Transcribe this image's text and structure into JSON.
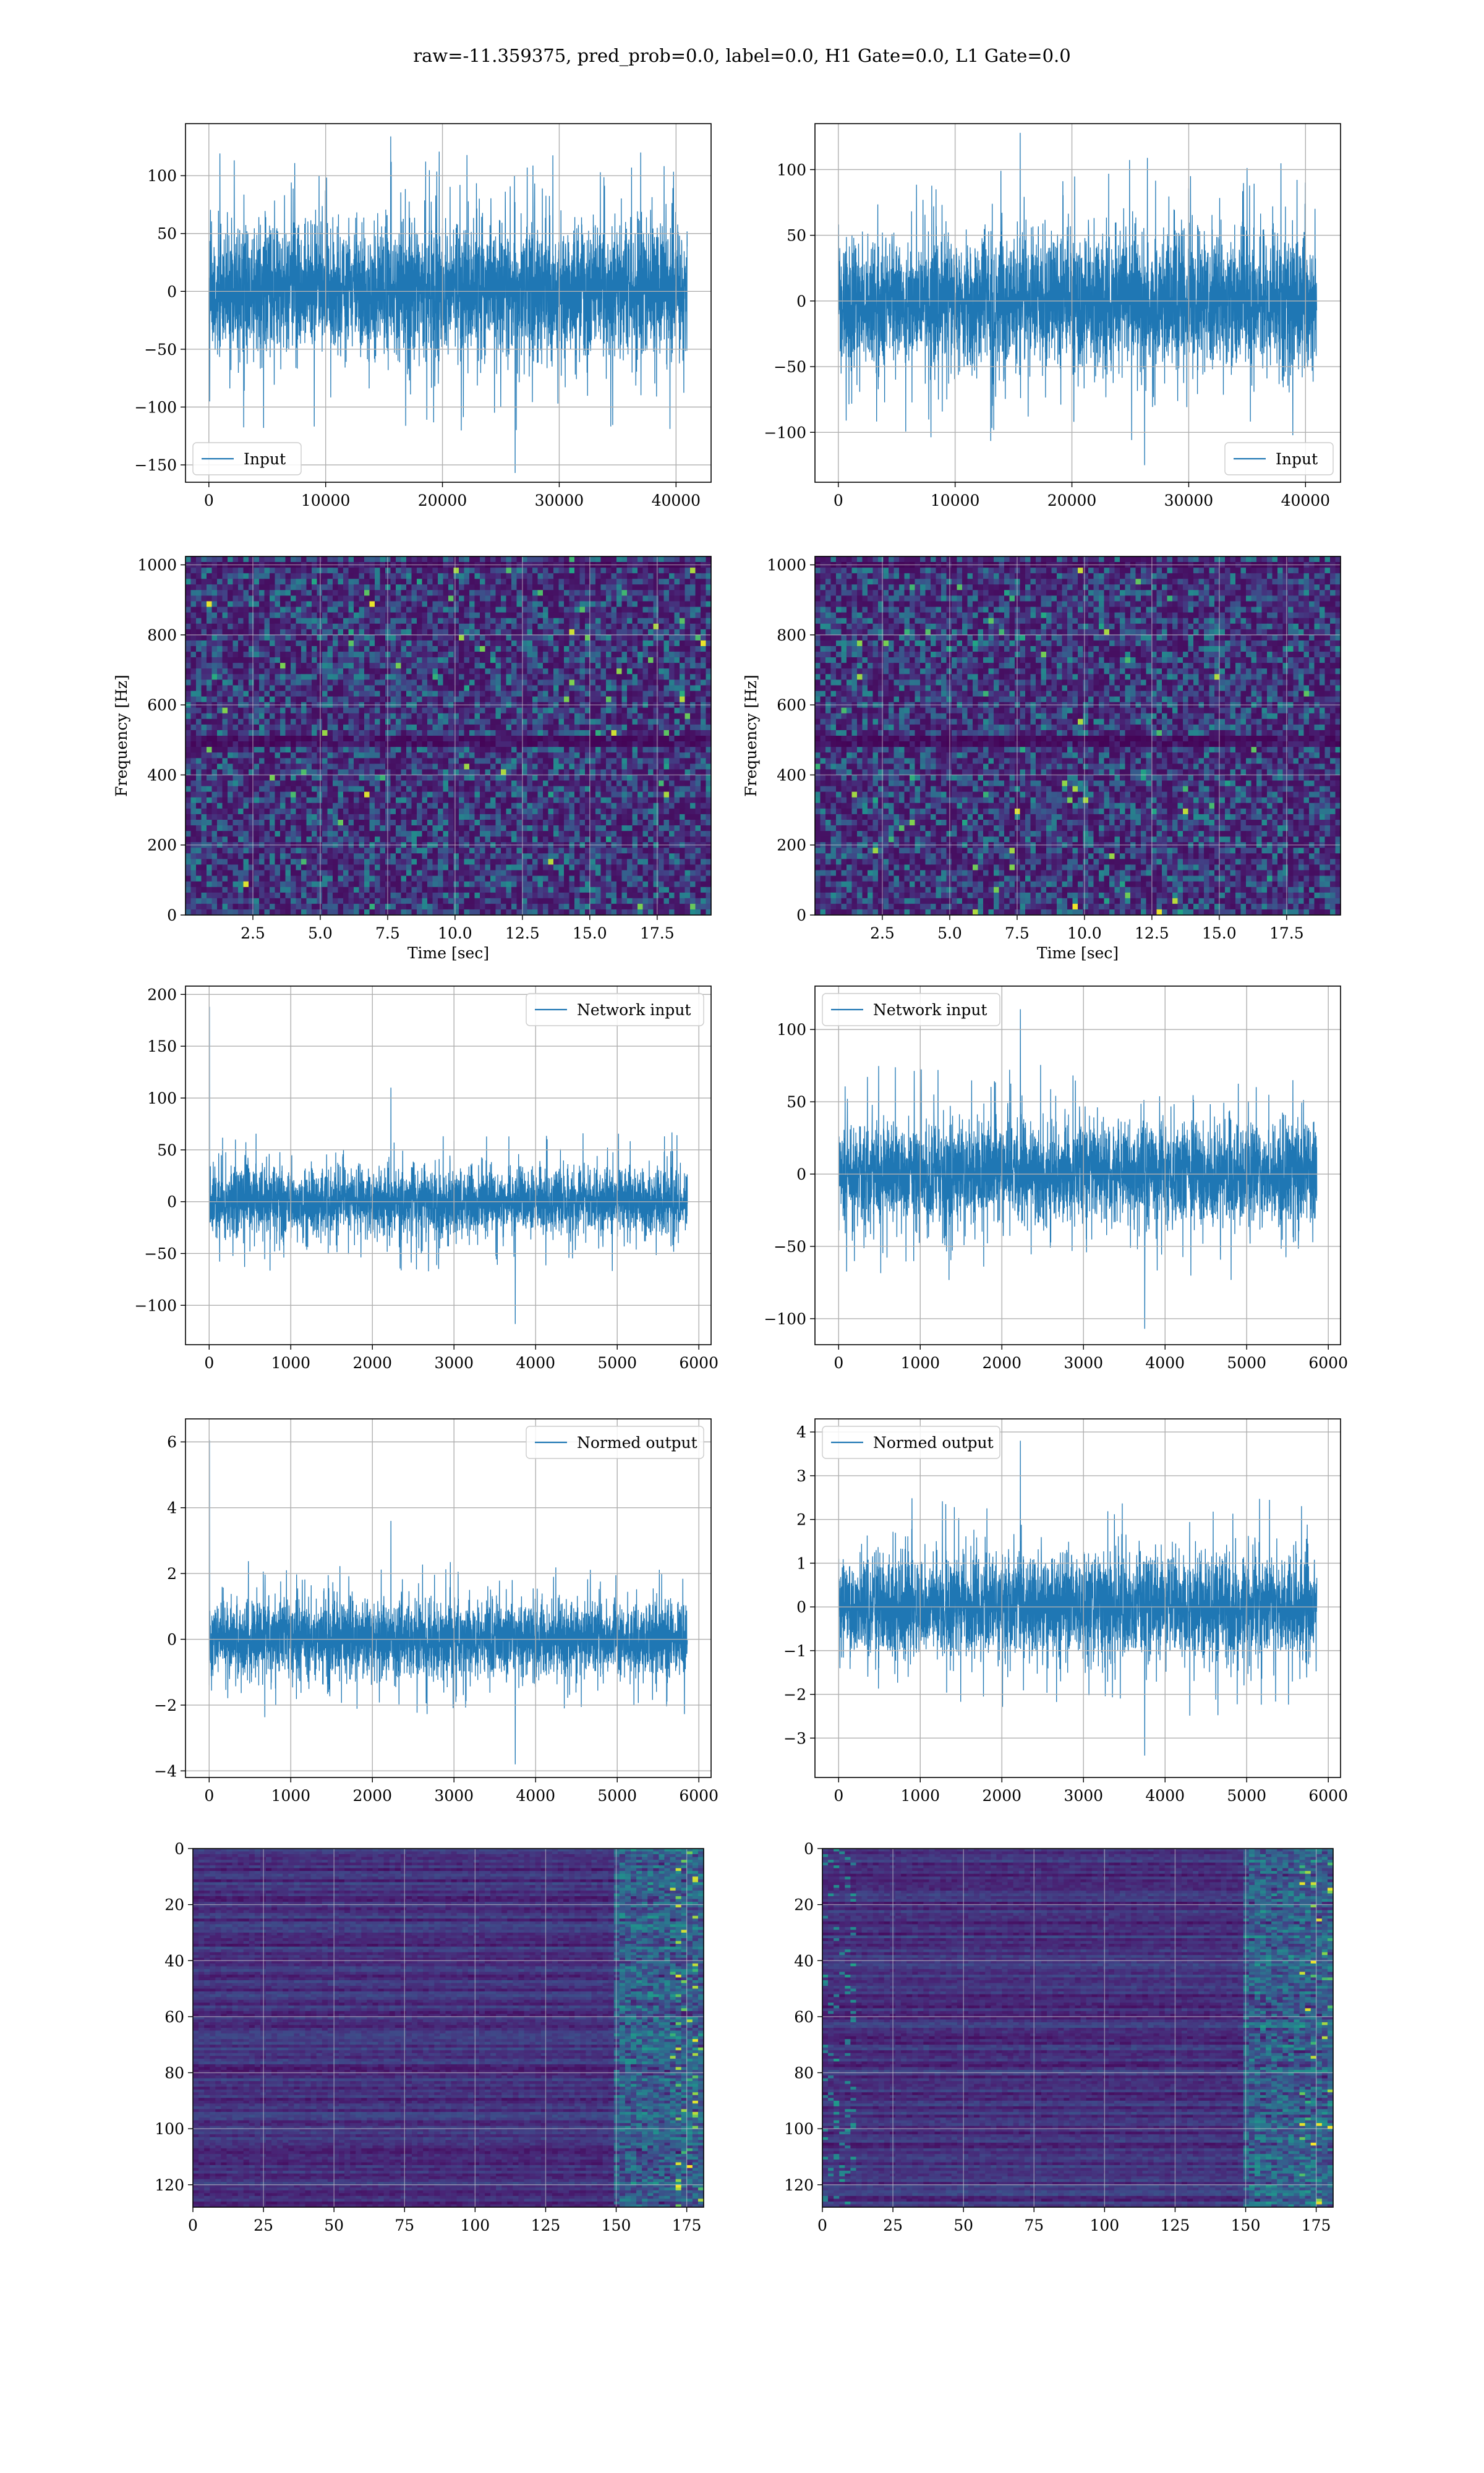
{
  "figure": {
    "suptitle": "raw=-11.359375, pred_prob=0.0, label=0.0, H1 Gate=0.0, L1 Gate=0.0",
    "line_color": "#1f77b4",
    "grid_color": "#b0b0b0",
    "colormap": "viridis"
  },
  "chart_data": [
    {
      "type": "line",
      "panel": "row1-left",
      "series": [
        {
          "name": "Input",
          "amplitude": 58,
          "spike_max": 134,
          "spike_min": -157,
          "n_samples": 40960
        }
      ],
      "xlim": [
        -2000,
        43000
      ],
      "ylim": [
        -165,
        145
      ],
      "xticks": [
        0,
        10000,
        20000,
        30000,
        40000
      ],
      "xticklabels": [
        "0",
        "10000",
        "20000",
        "30000",
        "40000"
      ],
      "yticks": [
        100,
        50,
        0,
        -50,
        -100,
        -150
      ],
      "yticklabels": [
        "100",
        "50",
        "0",
        "−50",
        "−100",
        "−150"
      ],
      "legend": "lower left",
      "grid": true
    },
    {
      "type": "line",
      "panel": "row1-right",
      "series": [
        {
          "name": "Input",
          "amplitude": 52,
          "spike_max": 128,
          "spike_min": -125,
          "n_samples": 40960
        }
      ],
      "xlim": [
        -2000,
        43000
      ],
      "ylim": [
        -138,
        135
      ],
      "xticks": [
        0,
        10000,
        20000,
        30000,
        40000
      ],
      "xticklabels": [
        "0",
        "10000",
        "20000",
        "30000",
        "40000"
      ],
      "yticks": [
        100,
        50,
        0,
        -50,
        -100
      ],
      "yticklabels": [
        "100",
        "50",
        "0",
        "−50",
        "−100"
      ],
      "legend": "lower right",
      "grid": true
    },
    {
      "type": "heatmap",
      "panel": "row2-left",
      "xlabel": "Time [sec]",
      "ylabel": "Frequency [Hz]",
      "xlim": [
        0,
        19.5
      ],
      "ylim": [
        0,
        1024
      ],
      "xticks": [
        2.5,
        5.0,
        7.5,
        10.0,
        12.5,
        15.0,
        17.5
      ],
      "xticklabels": [
        "2.5",
        "5.0",
        "7.5",
        "10.0",
        "12.5",
        "15.0",
        "17.5"
      ],
      "yticks": [
        0,
        200,
        400,
        600,
        800,
        1000
      ],
      "yticklabels": [
        "0",
        "200",
        "400",
        "600",
        "800",
        "1000"
      ],
      "dark_bands_hz": [
        1000,
        510,
        495
      ],
      "grid": true
    },
    {
      "type": "heatmap",
      "panel": "row2-right",
      "xlabel": "Time [sec]",
      "ylabel": "Frequency [Hz]",
      "xlim": [
        0,
        19.5
      ],
      "ylim": [
        0,
        1024
      ],
      "xticks": [
        2.5,
        5.0,
        7.5,
        10.0,
        12.5,
        15.0,
        17.5
      ],
      "xticklabels": [
        "2.5",
        "5.0",
        "7.5",
        "10.0",
        "12.5",
        "15.0",
        "17.5"
      ],
      "yticks": [
        0,
        200,
        400,
        600,
        800,
        1000
      ],
      "yticklabels": [
        "0",
        "200",
        "400",
        "600",
        "800",
        "1000"
      ],
      "dark_bands_hz": [
        1000,
        510,
        495
      ],
      "grid": true
    },
    {
      "type": "line",
      "panel": "row3-left",
      "series": [
        {
          "name": "Network input",
          "amplitude": 32,
          "spike_max": 110,
          "spike_min": -118,
          "start_spike": 188,
          "n_samples": 5860
        }
      ],
      "xlim": [
        -290,
        6150
      ],
      "ylim": [
        -138,
        208
      ],
      "xticks": [
        0,
        1000,
        2000,
        3000,
        4000,
        5000,
        6000
      ],
      "xticklabels": [
        "0",
        "1000",
        "2000",
        "3000",
        "4000",
        "5000",
        "6000"
      ],
      "yticks": [
        200,
        150,
        100,
        50,
        0,
        -50,
        -100
      ],
      "yticklabels": [
        "200",
        "150",
        "100",
        "50",
        "0",
        "−50",
        "−100"
      ],
      "legend": "upper right",
      "grid": true
    },
    {
      "type": "line",
      "panel": "row3-right",
      "series": [
        {
          "name": "Network input",
          "amplitude": 36,
          "spike_max": 114,
          "spike_min": -107,
          "n_samples": 5860
        }
      ],
      "xlim": [
        -290,
        6150
      ],
      "ylim": [
        -118,
        130
      ],
      "xticks": [
        0,
        1000,
        2000,
        3000,
        4000,
        5000,
        6000
      ],
      "xticklabels": [
        "0",
        "1000",
        "2000",
        "3000",
        "4000",
        "5000",
        "6000"
      ],
      "yticks": [
        100,
        50,
        0,
        -50,
        -100
      ],
      "yticklabels": [
        "100",
        "50",
        "0",
        "−50",
        "−100"
      ],
      "legend": "upper left",
      "grid": true
    },
    {
      "type": "line",
      "panel": "row4-left",
      "series": [
        {
          "name": "Normed output",
          "amplitude": 1.15,
          "spike_max": 3.6,
          "spike_min": -3.8,
          "start_spike": 6.05,
          "n_samples": 5860
        }
      ],
      "xlim": [
        -290,
        6150
      ],
      "ylim": [
        -4.2,
        6.7
      ],
      "xticks": [
        0,
        1000,
        2000,
        3000,
        4000,
        5000,
        6000
      ],
      "xticklabels": [
        "0",
        "1000",
        "2000",
        "3000",
        "4000",
        "5000",
        "6000"
      ],
      "yticks": [
        6,
        4,
        2,
        0,
        -2,
        -4
      ],
      "yticklabels": [
        "6",
        "4",
        "2",
        "0",
        "−2",
        "−4"
      ],
      "legend": "upper right",
      "grid": true
    },
    {
      "type": "line",
      "panel": "row4-right",
      "series": [
        {
          "name": "Normed output",
          "amplitude": 1.2,
          "spike_max": 3.8,
          "spike_min": -3.4,
          "n_samples": 5860
        }
      ],
      "xlim": [
        -290,
        6150
      ],
      "ylim": [
        -3.9,
        4.3
      ],
      "xticks": [
        0,
        1000,
        2000,
        3000,
        4000,
        5000,
        6000
      ],
      "xticklabels": [
        "0",
        "1000",
        "2000",
        "3000",
        "4000",
        "5000",
        "6000"
      ],
      "yticks": [
        4,
        3,
        2,
        1,
        0,
        -1,
        -2,
        -3
      ],
      "yticklabels": [
        "4",
        "3",
        "2",
        "1",
        "0",
        "−1",
        "−2",
        "−3"
      ],
      "legend": "upper left",
      "grid": true
    },
    {
      "type": "heatmap",
      "panel": "row5-left",
      "xlim": [
        0,
        181
      ],
      "ylim": [
        128,
        0
      ],
      "xticks": [
        0,
        25,
        50,
        75,
        100,
        125,
        150,
        175
      ],
      "xticklabels": [
        "0",
        "25",
        "50",
        "75",
        "100",
        "125",
        "150",
        "175"
      ],
      "yticks": [
        0,
        20,
        40,
        60,
        80,
        100,
        120
      ],
      "yticklabels": [
        "0",
        "20",
        "40",
        "60",
        "80",
        "100",
        "120"
      ],
      "grid": true
    },
    {
      "type": "heatmap",
      "panel": "row5-right",
      "xlim": [
        0,
        181
      ],
      "ylim": [
        128,
        0
      ],
      "xticks": [
        0,
        25,
        50,
        75,
        100,
        125,
        150,
        175
      ],
      "xticklabels": [
        "0",
        "25",
        "50",
        "75",
        "100",
        "125",
        "150",
        "175"
      ],
      "yticks": [
        0,
        20,
        40,
        60,
        80,
        100,
        120
      ],
      "yticklabels": [
        "0",
        "20",
        "40",
        "60",
        "80",
        "100",
        "120"
      ],
      "grid": true
    }
  ]
}
